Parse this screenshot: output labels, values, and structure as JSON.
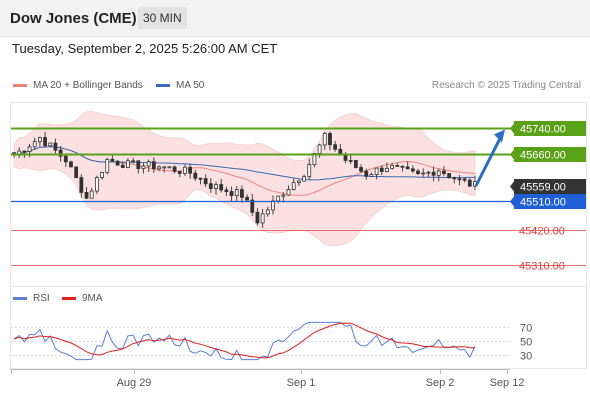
{
  "header": {
    "title": "Dow Jones (CME)",
    "timeframe": "30 MIN"
  },
  "date_line": "Tuesday, September 2, 2025 5:26:00 AM CET",
  "legend": {
    "ma20_bb": "MA 20 + Bollinger Bands",
    "ma50": "MA 50",
    "rsi": "RSI",
    "rsi_ma": "9MA"
  },
  "credit": "Research © 2025 Trading Central",
  "colors": {
    "resistance": "#5aa118",
    "support": "#1f5fd6",
    "target": "#e04040",
    "price": "#333333",
    "arrow": "#2b6cc4",
    "bollinger": "#fbe1e1",
    "ma20": "#f08080",
    "ma50": "#3a6ab4",
    "rsi": "#5b7fd6",
    "rsi_ma": "#e02020"
  },
  "chart_data": {
    "type": "candlestick",
    "x_ticks": [
      "Aug 29",
      "Sep 1",
      "Sep 2",
      "Sep 12"
    ],
    "y_range": [
      45270,
      45790
    ],
    "levels": [
      {
        "value": 45740.0,
        "label": "45740.00",
        "kind": "resistance"
      },
      {
        "value": 45660.0,
        "label": "45660.00",
        "kind": "resistance"
      },
      {
        "value": 45559.0,
        "label": "45559.00",
        "kind": "price"
      },
      {
        "value": 45510.0,
        "label": "45510.00",
        "kind": "support"
      },
      {
        "value": 45420.0,
        "label": "45420.00",
        "kind": "target"
      },
      {
        "value": 45310.0,
        "label": "45310.00",
        "kind": "target"
      }
    ],
    "forecast_arrow": {
      "from": 45559,
      "to": 45735
    },
    "rsi_panel": {
      "y_range": [
        15,
        85
      ],
      "ticks": [
        70,
        50,
        30
      ]
    }
  }
}
